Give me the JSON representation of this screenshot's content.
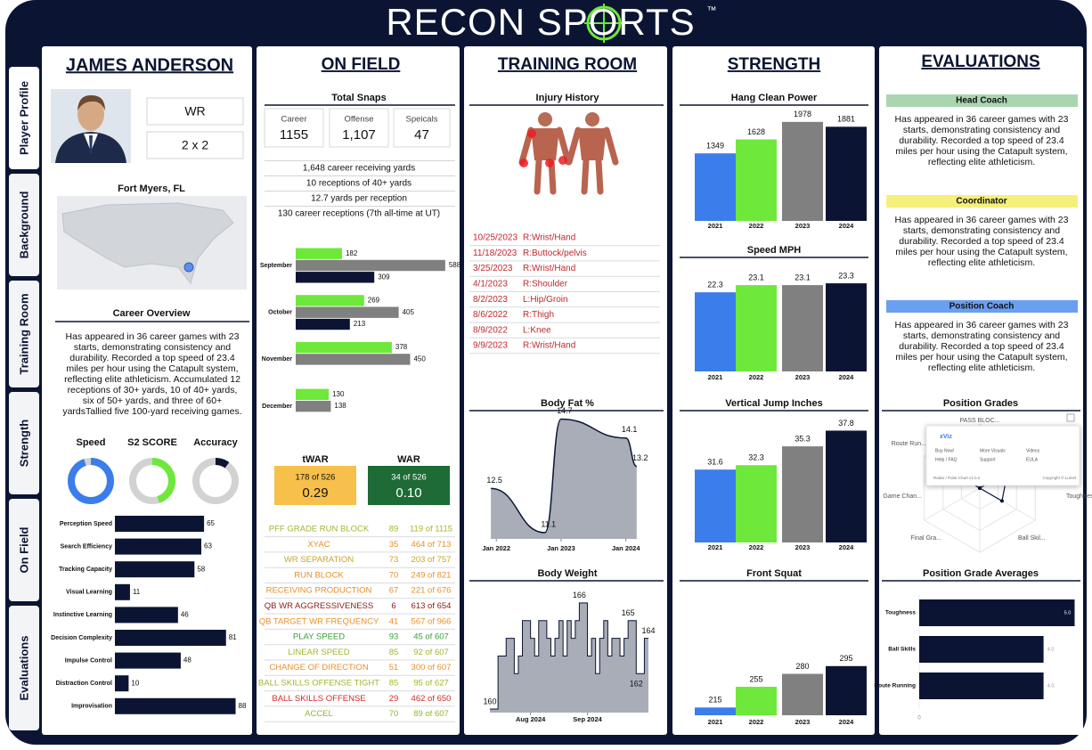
{
  "brand": {
    "name": "RECON SPORTS",
    "tm": "™"
  },
  "tabs": [
    "Player Profile",
    "Background",
    "Training Room",
    "Strength",
    "On Field",
    "Evaluations"
  ],
  "profile": {
    "name": "JAMES ANDERSON",
    "position": "WR",
    "number": "2 x 2",
    "hometown": "Fort Myers, FL",
    "overview_title": "Career Overview",
    "overview": "Has appeared in 36 career games with 23 starts, demonstrating consistency and durability. Recorded a top speed of 23.4 miles per hour using the Catapult system, reflecting elite athleticism. Accumulated 12 receptions of 30+ yards, 10 of 40+ yards, six of 50+ yards, and three of 60+ yardsTallied five 100-yard receiving games.",
    "gauges": [
      {
        "label": "Speed",
        "value": 95,
        "color": "#3b7dea"
      },
      {
        "label": "S2 SCORE",
        "value": 45,
        "color": "#6ee83a"
      },
      {
        "label": "Accuracy",
        "value": 10,
        "color": "#0b1533"
      }
    ],
    "attributes": {
      "type": "bar",
      "categories": [
        "Perception Speed",
        "Search Efficiency",
        "Tracking Capacity",
        "Visual Learning",
        "Instinctive Learning",
        "Decision Complexity",
        "Impulse Control",
        "Distraction Control",
        "Improvisation"
      ],
      "values": [
        65,
        63,
        58,
        11,
        46,
        81,
        48,
        10,
        88
      ],
      "color": "#0b1533",
      "xlim": [
        0,
        100
      ]
    }
  },
  "on_field": {
    "title": "ON FIELD",
    "snaps_title": "Total Snaps",
    "snaps": [
      {
        "label": "Career",
        "value": "1155"
      },
      {
        "label": "Offense",
        "value": "1,107"
      },
      {
        "label": "Speicals",
        "value": "47"
      }
    ],
    "stats": [
      "1,648 career receiving yards",
      "10 receptions of 40+ yards",
      "12.7 yards per reception",
      "130 career receptions (7th all-time at UT)"
    ],
    "monthly": {
      "type": "bar",
      "categories": [
        "September",
        "October",
        "November",
        "December"
      ],
      "series": [
        {
          "color": "#6ee83a",
          "values": [
            182,
            269,
            378,
            130
          ]
        },
        {
          "color": "#808080",
          "values": [
            588,
            405,
            450,
            138
          ]
        },
        {
          "color": "#0b1533",
          "values": [
            309,
            213,
            null,
            null
          ]
        }
      ],
      "xlim": [
        0,
        620
      ]
    },
    "war": [
      {
        "title": "tWAR",
        "rank": "178 of 526",
        "value": "0.29",
        "color": "#f7c04a",
        "text_color": "#111111"
      },
      {
        "title": "WAR",
        "rank": "34 of 526",
        "value": "0.10",
        "color": "#1e6b36",
        "text_color": "#ffffff"
      }
    ],
    "grades": [
      {
        "name": "PFF GRADE RUN BLOCK",
        "value": 89,
        "rank": "119 of 1115",
        "color": "#a3b52e"
      },
      {
        "name": "XYAC",
        "value": 35,
        "rank": "464 of 713",
        "color": "#e8902a"
      },
      {
        "name": "WR SEPARATION",
        "value": 73,
        "rank": "203 of 757",
        "color": "#c9a52a"
      },
      {
        "name": "RUN BLOCK",
        "value": 70,
        "rank": "249 of 821",
        "color": "#e8902a"
      },
      {
        "name": "RECEIVING PRODUCTION",
        "value": 67,
        "rank": "221 of 676",
        "color": "#e8902a"
      },
      {
        "name": "QB WR AGGRESSIVENESS",
        "value": 6,
        "rank": "613 of 654",
        "color": "#8b1a1a"
      },
      {
        "name": "QB TARGET WR FREQUENCY",
        "value": 41,
        "rank": "567 of 966",
        "color": "#e8902a"
      },
      {
        "name": "PLAY SPEED",
        "value": 93,
        "rank": "45 of 607",
        "color": "#3aa03a"
      },
      {
        "name": "LINEAR SPEED",
        "value": 85,
        "rank": "92 of 607",
        "color": "#a3b52e"
      },
      {
        "name": "CHANGE OF DIRECTION",
        "value": 51,
        "rank": "300 of 607",
        "color": "#e8902a"
      },
      {
        "name": "BALL SKILLS OFFENSE TIGHT",
        "value": 85,
        "rank": "95 of 627",
        "color": "#a3b52e"
      },
      {
        "name": "BALL SKILLS OFFENSE",
        "value": 29,
        "rank": "462 of 650",
        "color": "#d62a2a"
      },
      {
        "name": "ACCEL",
        "value": 70,
        "rank": "89 of 607",
        "color": "#8fb82e"
      }
    ]
  },
  "training": {
    "title": "TRAINING ROOM",
    "injury_title": "Injury History",
    "injuries": [
      {
        "date": "10/25/2023",
        "description": "R:Wrist/Hand"
      },
      {
        "date": "11/18/2023",
        "description": "R:Buttock/pelvis"
      },
      {
        "date": "3/25/2023",
        "description": "R:Wrist/Hand"
      },
      {
        "date": "4/1/2023",
        "description": "R:Shoulder"
      },
      {
        "date": "8/2/2023",
        "description": "L:Hip/Groin"
      },
      {
        "date": "8/6/2022",
        "description": "R:Thigh"
      },
      {
        "date": "8/9/2022",
        "description": "L:Knee"
      },
      {
        "date": "9/9/2023",
        "description": "R:Wrist/Hand"
      }
    ],
    "body_fat": {
      "type": "line",
      "title": "Body Fat %",
      "x": [
        "2021-12",
        "2022-10",
        "2023-01",
        "2024-01",
        "2024-03"
      ],
      "values": [
        12.5,
        11.1,
        14.7,
        14.1,
        13.2
      ],
      "color": "#0b1533",
      "fill": "#a9adb8",
      "xlim": [
        "2021-10",
        "2024-06"
      ],
      "ylim": [
        10.9,
        14.8
      ],
      "xticks": [
        {
          "value": "2022-01",
          "label": "Jan 2022"
        },
        {
          "value": "2023-01",
          "label": "Jan 2023"
        },
        {
          "value": "2024-01",
          "label": "Jan 2024"
        }
      ]
    },
    "body_weight": {
      "type": "step",
      "title": "Body Weight",
      "values": [
        160,
        160,
        163,
        163,
        164,
        164,
        162,
        163,
        165,
        165,
        164,
        163,
        165,
        165,
        164,
        163,
        164,
        165,
        163,
        165,
        164,
        165,
        166,
        166,
        163,
        164,
        162,
        164,
        165,
        163,
        164,
        164,
        163,
        164,
        165,
        165,
        162,
        162,
        164,
        164
      ],
      "value_labels": [
        "160",
        null,
        null,
        null,
        null,
        null,
        null,
        null,
        null,
        null,
        null,
        null,
        null,
        null,
        null,
        null,
        null,
        null,
        null,
        null,
        null,
        null,
        "166",
        null,
        null,
        null,
        null,
        null,
        null,
        null,
        null,
        null,
        null,
        null,
        "165",
        null,
        "162",
        null,
        null,
        "164"
      ],
      "color": "#0b1533",
      "fill": "#a9adb8",
      "xlim": [
        0,
        39
      ],
      "ylim": [
        159.8,
        167
      ],
      "xticks": [
        {
          "value": 10,
          "label": "Aug 2024"
        },
        {
          "value": 24,
          "label": "Sep 2024"
        }
      ]
    }
  },
  "strength": {
    "title": "STRENGTH",
    "charts": [
      {
        "type": "bar",
        "title": "Hang Clean Power",
        "categories": [
          "2021",
          "2022",
          "2023",
          "2024"
        ],
        "values": [
          1349,
          1628,
          1978,
          1881
        ],
        "ylim": [
          0,
          2100
        ]
      },
      {
        "type": "bar",
        "title": "Speed MPH",
        "categories": [
          "2021",
          "2022",
          "2023",
          "2024"
        ],
        "values": [
          22.3,
          23.1,
          23.1,
          23.3
        ],
        "ylim": [
          13.5,
          24
        ]
      },
      {
        "type": "bar",
        "title": "Vertical Jump Inches",
        "categories": [
          "2021",
          "2022",
          "2023",
          "2024"
        ],
        "values": [
          31.6,
          32.3,
          35.3,
          37.8
        ],
        "ylim": [
          20,
          39
        ]
      },
      {
        "type": "bar",
        "title": "Front Squat",
        "categories": [
          "2021",
          "2022",
          "2023",
          "2024"
        ],
        "values": [
          215,
          255,
          280,
          295
        ],
        "ylim": [
          200,
          305
        ]
      }
    ],
    "colors": [
      "#3b7dea",
      "#6ee83a",
      "#808080",
      "#0b1533"
    ]
  },
  "evaluations": {
    "title": "EVALUATIONS",
    "coaches": [
      {
        "title": "Head Coach",
        "color": "#a9d5b0",
        "text": "Has appeared in 36 career games with 23 starts, demonstrating consistency and durability. Recorded a top speed of 23.4 miles per hour using the Catapult system, reflecting elite athleticism."
      },
      {
        "title": "Coordinator",
        "color": "#f5f07a",
        "text": "Has appeared in 36 career games with 23 starts, demonstrating consistency and durability. Recorded a top speed of 23.4 miles per hour using the Catapult system, reflecting elite athleticism."
      },
      {
        "title": "Position Coach",
        "color": "#6b9ff0",
        "text": "Has appeared in 36 career games with 23 starts, demonstrating consistency and durability. Recorded a top speed of 23.4 miles per hour using the Catapult system, reflecting elite athleticism."
      }
    ],
    "radar": {
      "type": "radar",
      "title": "Position Grades",
      "categories": [
        "PASS BLOC...",
        "Toughness",
        "Ball Skil...",
        "Final Gra...",
        "Game Chan...",
        "Route Run..."
      ],
      "values": [
        0,
        5,
        4,
        0,
        0,
        4
      ],
      "rlim": [
        0,
        10
      ],
      "color": "#0b1533"
    },
    "popup": {
      "brand": "xViz",
      "items": [
        "Buy Now!",
        "More Visuals",
        "Videos",
        "Help / FAQ",
        "Support",
        "EULA"
      ],
      "version": "Radar / Polar Chart v1.0.2",
      "copyright": "Copyright © Lumel"
    },
    "averages": {
      "type": "bar",
      "title": "Position Grade Averages",
      "categories": [
        "Toughness",
        "Ball Skills",
        "Route Running"
      ],
      "values": [
        5,
        4,
        4
      ],
      "value_labels": [
        "5.0",
        "4.0",
        "4.0"
      ],
      "color": "#0b1533",
      "xlim": [
        0,
        5.1
      ],
      "xticks": [
        0
      ]
    }
  }
}
